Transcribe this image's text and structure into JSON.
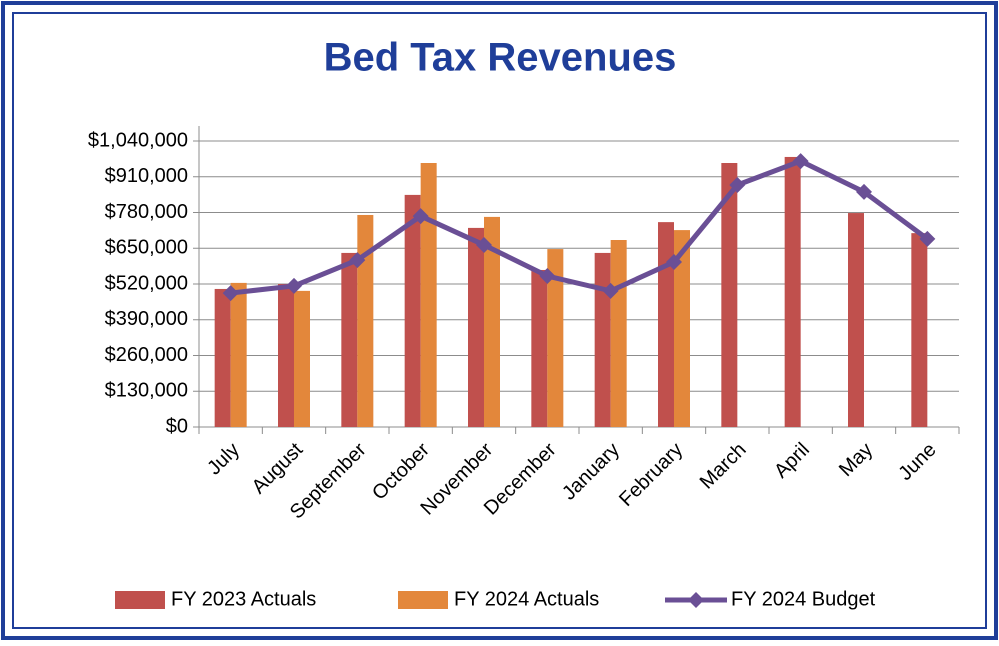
{
  "chart_data": {
    "type": "bar",
    "title": "Bed Tax Revenues",
    "categories": [
      "July",
      "August",
      "September",
      "October",
      "November",
      "December",
      "January",
      "February",
      "March",
      "April",
      "May",
      "June"
    ],
    "series": [
      {
        "name": "FY 2023 Actuals",
        "type": "bar",
        "color": "#c0504d",
        "values": [
          502000,
          520000,
          633000,
          844000,
          724000,
          571000,
          633000,
          745000,
          960000,
          982000,
          778000,
          705000
        ]
      },
      {
        "name": "FY 2024 Actuals",
        "type": "bar",
        "color": "#e3873b",
        "values": [
          524000,
          495000,
          771000,
          960000,
          764000,
          647000,
          680000,
          716000,
          null,
          null,
          null,
          null
        ]
      },
      {
        "name": "FY 2024 Budget",
        "type": "line",
        "color": "#6a4f95",
        "values": [
          487000,
          513000,
          607000,
          767000,
          662000,
          549000,
          495000,
          600000,
          880000,
          967000,
          855000,
          684000
        ]
      }
    ],
    "ylim": [
      0,
      1040000
    ],
    "yticks": [
      {
        "value": 0,
        "label": "$0"
      },
      {
        "value": 130000,
        "label": "$130,000"
      },
      {
        "value": 260000,
        "label": "$260,000"
      },
      {
        "value": 390000,
        "label": "$390,000"
      },
      {
        "value": 520000,
        "label": "$520,000"
      },
      {
        "value": 650000,
        "label": "$650,000"
      },
      {
        "value": 780000,
        "label": "$780,000"
      },
      {
        "value": 910000,
        "label": "$910,000"
      },
      {
        "value": 1040000,
        "label": "$1,040,000"
      }
    ],
    "grid": true,
    "legend": "bottom"
  }
}
